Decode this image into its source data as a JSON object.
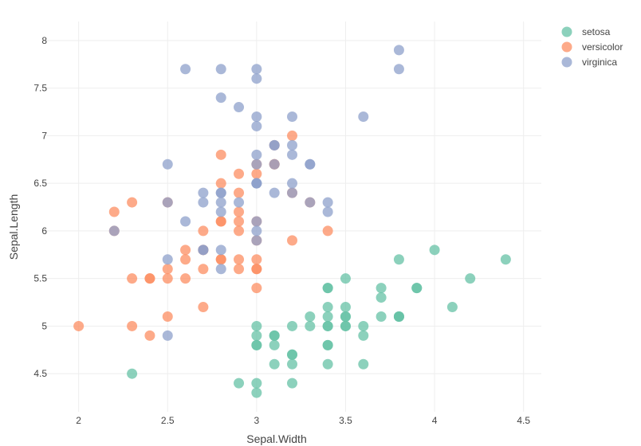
{
  "chart_data": {
    "type": "scatter",
    "xlabel": "Sepal.Width",
    "ylabel": "Sepal.Length",
    "xlim": [
      1.8,
      4.6
    ],
    "ylim": [
      4.1,
      8.2
    ],
    "xticks": [
      "2",
      "2.5",
      "3",
      "3.5",
      "4",
      "4.5"
    ],
    "yticks": [
      "4.5",
      "5",
      "5.5",
      "6",
      "6.5",
      "7",
      "7.5",
      "8"
    ],
    "grid": true,
    "legend_position": "top-right",
    "series": [
      {
        "name": "setosa",
        "color": "#66c2a5",
        "points": [
          [
            3.5,
            5.1
          ],
          [
            3.0,
            4.9
          ],
          [
            3.2,
            4.7
          ],
          [
            3.1,
            4.6
          ],
          [
            3.6,
            5.0
          ],
          [
            3.9,
            5.4
          ],
          [
            3.4,
            4.6
          ],
          [
            3.4,
            5.0
          ],
          [
            2.9,
            4.4
          ],
          [
            3.1,
            4.9
          ],
          [
            3.7,
            5.4
          ],
          [
            3.4,
            4.8
          ],
          [
            3.0,
            4.8
          ],
          [
            3.0,
            4.3
          ],
          [
            4.0,
            5.8
          ],
          [
            4.4,
            5.7
          ],
          [
            3.9,
            5.4
          ],
          [
            3.5,
            5.1
          ],
          [
            3.8,
            5.7
          ],
          [
            3.8,
            5.1
          ],
          [
            3.4,
            5.4
          ],
          [
            3.7,
            5.1
          ],
          [
            3.6,
            4.6
          ],
          [
            3.3,
            5.1
          ],
          [
            3.4,
            4.8
          ],
          [
            3.0,
            5.0
          ],
          [
            3.4,
            5.0
          ],
          [
            3.5,
            5.2
          ],
          [
            3.4,
            5.2
          ],
          [
            3.2,
            4.7
          ],
          [
            3.1,
            4.8
          ],
          [
            3.4,
            5.4
          ],
          [
            4.1,
            5.2
          ],
          [
            4.2,
            5.5
          ],
          [
            3.1,
            4.9
          ],
          [
            3.2,
            5.0
          ],
          [
            3.5,
            5.5
          ],
          [
            3.6,
            4.9
          ],
          [
            3.0,
            4.4
          ],
          [
            3.4,
            5.1
          ],
          [
            3.5,
            5.0
          ],
          [
            2.3,
            4.5
          ],
          [
            3.2,
            4.4
          ],
          [
            3.5,
            5.0
          ],
          [
            3.8,
            5.1
          ],
          [
            3.0,
            4.8
          ],
          [
            3.8,
            5.1
          ],
          [
            3.2,
            4.6
          ],
          [
            3.7,
            5.3
          ],
          [
            3.3,
            5.0
          ]
        ]
      },
      {
        "name": "versicolor",
        "color": "#fc8d62",
        "points": [
          [
            3.2,
            7.0
          ],
          [
            3.2,
            6.4
          ],
          [
            3.1,
            6.9
          ],
          [
            2.3,
            5.5
          ],
          [
            2.8,
            6.5
          ],
          [
            2.8,
            5.7
          ],
          [
            3.3,
            6.3
          ],
          [
            2.4,
            4.9
          ],
          [
            2.9,
            6.6
          ],
          [
            2.7,
            5.2
          ],
          [
            2.0,
            5.0
          ],
          [
            3.0,
            5.9
          ],
          [
            2.2,
            6.0
          ],
          [
            2.9,
            6.1
          ],
          [
            2.9,
            5.6
          ],
          [
            3.1,
            6.7
          ],
          [
            3.0,
            5.6
          ],
          [
            2.7,
            5.8
          ],
          [
            2.2,
            6.2
          ],
          [
            2.5,
            5.6
          ],
          [
            3.2,
            5.9
          ],
          [
            2.8,
            6.1
          ],
          [
            2.5,
            6.3
          ],
          [
            2.8,
            6.1
          ],
          [
            2.9,
            6.4
          ],
          [
            3.0,
            6.6
          ],
          [
            2.8,
            6.8
          ],
          [
            3.0,
            6.7
          ],
          [
            2.9,
            6.0
          ],
          [
            2.6,
            5.7
          ],
          [
            2.4,
            5.5
          ],
          [
            2.4,
            5.5
          ],
          [
            2.7,
            5.8
          ],
          [
            2.7,
            6.0
          ],
          [
            3.0,
            5.4
          ],
          [
            3.4,
            6.0
          ],
          [
            3.1,
            6.7
          ],
          [
            2.3,
            6.3
          ],
          [
            3.0,
            5.6
          ],
          [
            2.5,
            5.5
          ],
          [
            2.6,
            5.5
          ],
          [
            3.0,
            6.1
          ],
          [
            2.6,
            5.8
          ],
          [
            2.3,
            5.0
          ],
          [
            2.7,
            5.6
          ],
          [
            3.0,
            5.7
          ],
          [
            2.9,
            5.7
          ],
          [
            2.9,
            6.2
          ],
          [
            2.5,
            5.1
          ],
          [
            2.8,
            5.7
          ]
        ]
      },
      {
        "name": "virginica",
        "color": "#8da0cb",
        "points": [
          [
            3.3,
            6.3
          ],
          [
            2.7,
            5.8
          ],
          [
            3.0,
            7.1
          ],
          [
            2.9,
            6.3
          ],
          [
            3.0,
            6.5
          ],
          [
            3.0,
            7.6
          ],
          [
            2.5,
            4.9
          ],
          [
            2.9,
            7.3
          ],
          [
            2.5,
            6.7
          ],
          [
            3.6,
            7.2
          ],
          [
            3.2,
            6.5
          ],
          [
            2.7,
            6.4
          ],
          [
            3.0,
            6.8
          ],
          [
            2.5,
            5.7
          ],
          [
            2.8,
            5.8
          ],
          [
            3.2,
            6.4
          ],
          [
            3.0,
            6.5
          ],
          [
            3.8,
            7.7
          ],
          [
            2.6,
            7.7
          ],
          [
            2.2,
            6.0
          ],
          [
            3.2,
            6.9
          ],
          [
            2.8,
            5.6
          ],
          [
            2.8,
            7.7
          ],
          [
            2.7,
            6.3
          ],
          [
            3.3,
            6.7
          ],
          [
            3.2,
            7.2
          ],
          [
            2.8,
            6.2
          ],
          [
            3.0,
            6.1
          ],
          [
            2.8,
            6.4
          ],
          [
            3.0,
            7.2
          ],
          [
            2.8,
            7.4
          ],
          [
            3.8,
            7.9
          ],
          [
            2.8,
            6.4
          ],
          [
            2.8,
            6.3
          ],
          [
            2.6,
            6.1
          ],
          [
            3.0,
            7.7
          ],
          [
            3.4,
            6.3
          ],
          [
            3.1,
            6.4
          ],
          [
            3.0,
            6.0
          ],
          [
            3.1,
            6.9
          ],
          [
            3.1,
            6.7
          ],
          [
            3.1,
            6.9
          ],
          [
            2.7,
            5.8
          ],
          [
            3.2,
            6.8
          ],
          [
            3.3,
            6.7
          ],
          [
            3.0,
            6.7
          ],
          [
            2.5,
            6.3
          ],
          [
            3.0,
            6.5
          ],
          [
            3.4,
            6.2
          ],
          [
            3.0,
            5.9
          ]
        ]
      }
    ]
  }
}
